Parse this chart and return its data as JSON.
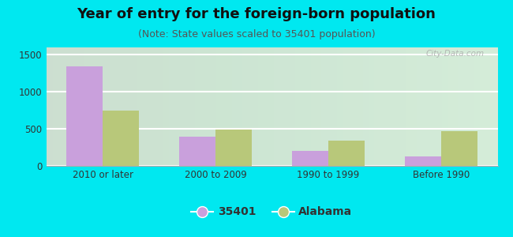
{
  "title": "Year of entry for the foreign-born population",
  "subtitle": "(Note: State values scaled to 35401 population)",
  "categories": [
    "2010 or later",
    "2000 to 2009",
    "1990 to 1999",
    "Before 1990"
  ],
  "values_35401": [
    1340,
    400,
    205,
    130
  ],
  "values_alabama": [
    745,
    490,
    345,
    470
  ],
  "bar_color_35401": "#c9a0dc",
  "bar_color_alabama": "#b8c87a",
  "background_outer": "#00e8f0",
  "ylim": [
    0,
    1600
  ],
  "yticks": [
    0,
    500,
    1000,
    1500
  ],
  "bar_width": 0.32,
  "legend_label_35401": "35401",
  "legend_label_alabama": "Alabama",
  "title_fontsize": 13,
  "subtitle_fontsize": 9,
  "tick_fontsize": 8.5,
  "legend_fontsize": 10
}
